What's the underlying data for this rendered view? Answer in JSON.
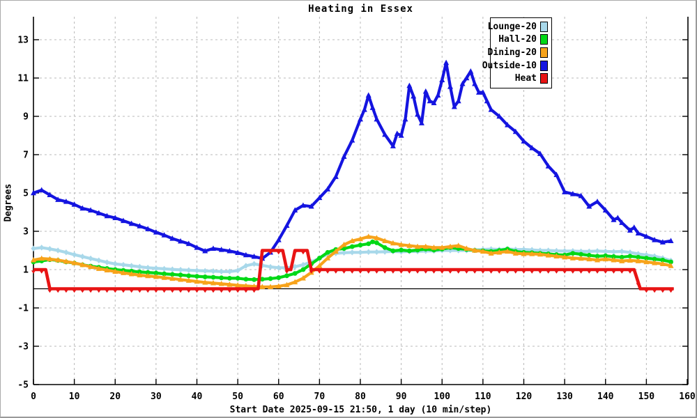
{
  "title": "Heating in Essex",
  "x_axis": {
    "label": "Start Date 2025-09-15 21:50, 1 day (10 min/step)",
    "ticks": [
      0,
      10,
      20,
      30,
      40,
      50,
      60,
      70,
      80,
      90,
      100,
      110,
      120,
      130,
      140,
      150,
      160
    ],
    "min": 0,
    "max": 160.3
  },
  "y_axis": {
    "label": "Degrees",
    "ticks": [
      13,
      11,
      9,
      7,
      5,
      3,
      1,
      -1,
      -3,
      -5
    ],
    "min": -5,
    "max": 14.2
  },
  "colors": {
    "grid": "#b8b8b8",
    "axis": "#000000",
    "zero_line": "#000000",
    "background": "#ffffff"
  },
  "chart_data": {
    "type": "line",
    "title": "Heating in Essex",
    "xlabel": "Start Date 2025-09-15 21:50, 1 day (10 min/step)",
    "ylabel": "Degrees",
    "x_range": [
      0,
      160.3
    ],
    "y_range": [
      -5,
      14.2
    ],
    "grid": true,
    "legend_position": "top-right",
    "zero_line": {
      "y": 0,
      "x_start": 0,
      "x_end": 156.7
    },
    "series": [
      {
        "name": "Lounge-20",
        "color": "#a8d8ea",
        "marker": "diamond",
        "x": [
          0,
          2,
          4,
          6,
          8,
          10,
          12,
          14,
          16,
          18,
          20,
          22,
          24,
          26,
          28,
          30,
          32,
          34,
          36,
          38,
          40,
          42,
          44,
          46,
          48,
          50,
          52,
          54,
          56,
          58,
          60,
          62,
          64,
          66,
          68,
          70,
          72,
          74,
          76,
          78,
          80,
          82,
          84,
          86,
          88,
          90,
          92,
          94,
          96,
          98,
          100,
          102,
          104,
          106,
          108,
          110,
          112,
          114,
          116,
          118,
          120,
          122,
          124,
          126,
          128,
          130,
          132,
          134,
          136,
          138,
          140,
          142,
          144,
          146,
          148,
          150,
          152,
          154,
          156
        ],
        "y": [
          2.1,
          2.15,
          2.08,
          2.0,
          1.9,
          1.78,
          1.68,
          1.58,
          1.48,
          1.38,
          1.3,
          1.25,
          1.2,
          1.15,
          1.1,
          1.07,
          1.04,
          1.01,
          0.99,
          0.97,
          0.95,
          0.93,
          0.92,
          0.9,
          0.9,
          0.95,
          1.2,
          1.3,
          1.22,
          1.14,
          1.1,
          1.1,
          1.15,
          1.25,
          1.4,
          1.6,
          1.8,
          1.85,
          1.88,
          1.9,
          1.9,
          1.92,
          1.92,
          1.93,
          1.95,
          1.93,
          1.95,
          1.95,
          1.97,
          1.98,
          2.0,
          2.0,
          2.0,
          2.0,
          2.02,
          2.05,
          2.07,
          2.05,
          2.08,
          2.05,
          2.05,
          2.03,
          2.0,
          2.0,
          1.98,
          1.97,
          1.97,
          1.95,
          1.95,
          1.97,
          1.95,
          1.93,
          1.95,
          1.9,
          1.82,
          1.76,
          1.7,
          1.6,
          1.47
        ]
      },
      {
        "name": "Hall-20",
        "color": "#00d816",
        "marker": "circle",
        "x": [
          0,
          2,
          4,
          6,
          8,
          10,
          12,
          14,
          16,
          18,
          20,
          22,
          24,
          26,
          28,
          30,
          32,
          34,
          36,
          38,
          40,
          42,
          44,
          46,
          48,
          50,
          52,
          54,
          56,
          58,
          60,
          62,
          64,
          66,
          68,
          70,
          72,
          74,
          76,
          78,
          80,
          82,
          83,
          84,
          86,
          88,
          90,
          92,
          94,
          96,
          98,
          100,
          102,
          104,
          106,
          108,
          110,
          112,
          114,
          116,
          118,
          120,
          122,
          124,
          126,
          128,
          130,
          132,
          134,
          136,
          138,
          140,
          142,
          144,
          146,
          148,
          150,
          152,
          154,
          156
        ],
        "y": [
          1.4,
          1.45,
          1.52,
          1.48,
          1.4,
          1.34,
          1.25,
          1.18,
          1.12,
          1.06,
          1.0,
          0.96,
          0.92,
          0.88,
          0.85,
          0.82,
          0.78,
          0.75,
          0.72,
          0.68,
          0.65,
          0.62,
          0.6,
          0.57,
          0.55,
          0.55,
          0.5,
          0.48,
          0.5,
          0.53,
          0.58,
          0.68,
          0.8,
          1.0,
          1.3,
          1.6,
          1.9,
          2.05,
          2.1,
          2.2,
          2.28,
          2.35,
          2.45,
          2.4,
          2.15,
          1.98,
          2.02,
          1.98,
          2.02,
          2.07,
          2.02,
          2.07,
          2.15,
          2.1,
          2.05,
          2.0,
          1.98,
          1.95,
          2.0,
          2.07,
          1.95,
          1.9,
          1.88,
          1.85,
          1.82,
          1.78,
          1.76,
          1.85,
          1.8,
          1.75,
          1.7,
          1.72,
          1.68,
          1.65,
          1.7,
          1.65,
          1.6,
          1.55,
          1.5,
          1.4
        ]
      },
      {
        "name": "Dining-20",
        "color": "#f7a31b",
        "marker": "triangle-up",
        "x": [
          0,
          2,
          4,
          6,
          8,
          10,
          12,
          14,
          16,
          18,
          20,
          22,
          24,
          26,
          28,
          30,
          32,
          34,
          36,
          38,
          40,
          42,
          44,
          46,
          48,
          50,
          52,
          54,
          56,
          58,
          60,
          62,
          64,
          66,
          68,
          70,
          72,
          74,
          76,
          78,
          80,
          82,
          84,
          86,
          88,
          90,
          92,
          94,
          96,
          98,
          100,
          102,
          104,
          106,
          108,
          110,
          112,
          114,
          116,
          118,
          120,
          122,
          124,
          126,
          128,
          130,
          132,
          134,
          136,
          138,
          140,
          142,
          144,
          146,
          148,
          150,
          152,
          154,
          156
        ],
        "y": [
          1.5,
          1.58,
          1.55,
          1.5,
          1.42,
          1.35,
          1.25,
          1.15,
          1.05,
          0.97,
          0.9,
          0.83,
          0.77,
          0.71,
          0.67,
          0.63,
          0.58,
          0.53,
          0.48,
          0.43,
          0.38,
          0.33,
          0.3,
          0.26,
          0.22,
          0.18,
          0.15,
          0.12,
          0.1,
          0.1,
          0.13,
          0.2,
          0.35,
          0.55,
          0.85,
          1.2,
          1.6,
          1.95,
          2.3,
          2.5,
          2.6,
          2.72,
          2.65,
          2.5,
          2.38,
          2.3,
          2.25,
          2.2,
          2.2,
          2.15,
          2.15,
          2.2,
          2.25,
          2.1,
          2.0,
          1.95,
          1.85,
          1.9,
          1.95,
          1.85,
          1.82,
          1.82,
          1.8,
          1.75,
          1.7,
          1.65,
          1.6,
          1.58,
          1.55,
          1.5,
          1.55,
          1.5,
          1.45,
          1.48,
          1.45,
          1.4,
          1.35,
          1.3,
          1.2
        ]
      },
      {
        "name": "Outside-10",
        "color": "#1414e0",
        "marker": "triangle-up",
        "x": [
          0,
          2,
          4,
          6,
          8,
          10,
          12,
          14,
          16,
          18,
          20,
          22,
          24,
          26,
          28,
          30,
          32,
          34,
          36,
          38,
          40,
          42,
          44,
          46,
          48,
          50,
          52,
          54,
          56,
          58,
          60,
          62,
          64,
          66,
          68,
          70,
          72,
          74,
          76,
          78,
          80,
          81,
          82,
          83,
          84,
          86,
          88,
          89,
          90,
          91,
          92,
          93,
          94,
          95,
          96,
          97,
          98,
          99,
          100,
          101,
          102,
          103,
          104,
          105,
          106,
          107,
          108,
          109,
          110,
          111,
          112,
          114,
          116,
          118,
          120,
          122,
          124,
          126,
          128,
          130,
          132,
          134,
          136,
          138,
          140,
          142,
          143,
          144,
          146,
          147,
          148,
          150,
          152,
          154,
          156
        ],
        "y": [
          5.0,
          5.15,
          4.9,
          4.65,
          4.55,
          4.4,
          4.2,
          4.1,
          3.95,
          3.8,
          3.7,
          3.55,
          3.4,
          3.27,
          3.12,
          2.95,
          2.8,
          2.62,
          2.48,
          2.35,
          2.15,
          1.97,
          2.1,
          2.04,
          1.97,
          1.88,
          1.76,
          1.68,
          1.58,
          1.9,
          2.55,
          3.3,
          4.1,
          4.35,
          4.3,
          4.75,
          5.2,
          5.85,
          6.9,
          7.75,
          8.85,
          9.35,
          10.1,
          9.45,
          8.85,
          8.05,
          7.45,
          8.1,
          8.0,
          8.85,
          10.6,
          10.05,
          9.1,
          8.65,
          10.3,
          9.8,
          9.7,
          10.1,
          10.9,
          11.8,
          10.55,
          9.5,
          9.8,
          10.7,
          11.0,
          11.35,
          10.7,
          10.25,
          10.25,
          9.8,
          9.35,
          9.0,
          8.55,
          8.2,
          7.7,
          7.35,
          7.05,
          6.4,
          5.95,
          5.05,
          4.95,
          4.85,
          4.3,
          4.55,
          4.1,
          3.6,
          3.7,
          3.45,
          3.05,
          3.2,
          2.9,
          2.73,
          2.55,
          2.43,
          2.5
        ]
      },
      {
        "name": "Heat",
        "color": "#e81414",
        "marker": "triangle-down",
        "x": [
          0,
          3,
          4,
          55,
          56,
          61,
          62,
          63,
          64,
          67,
          68,
          147,
          148.5,
          156.7
        ],
        "y": [
          1,
          1,
          0,
          0,
          2,
          2,
          1,
          1,
          2,
          2,
          1,
          1,
          0,
          0
        ]
      }
    ]
  }
}
